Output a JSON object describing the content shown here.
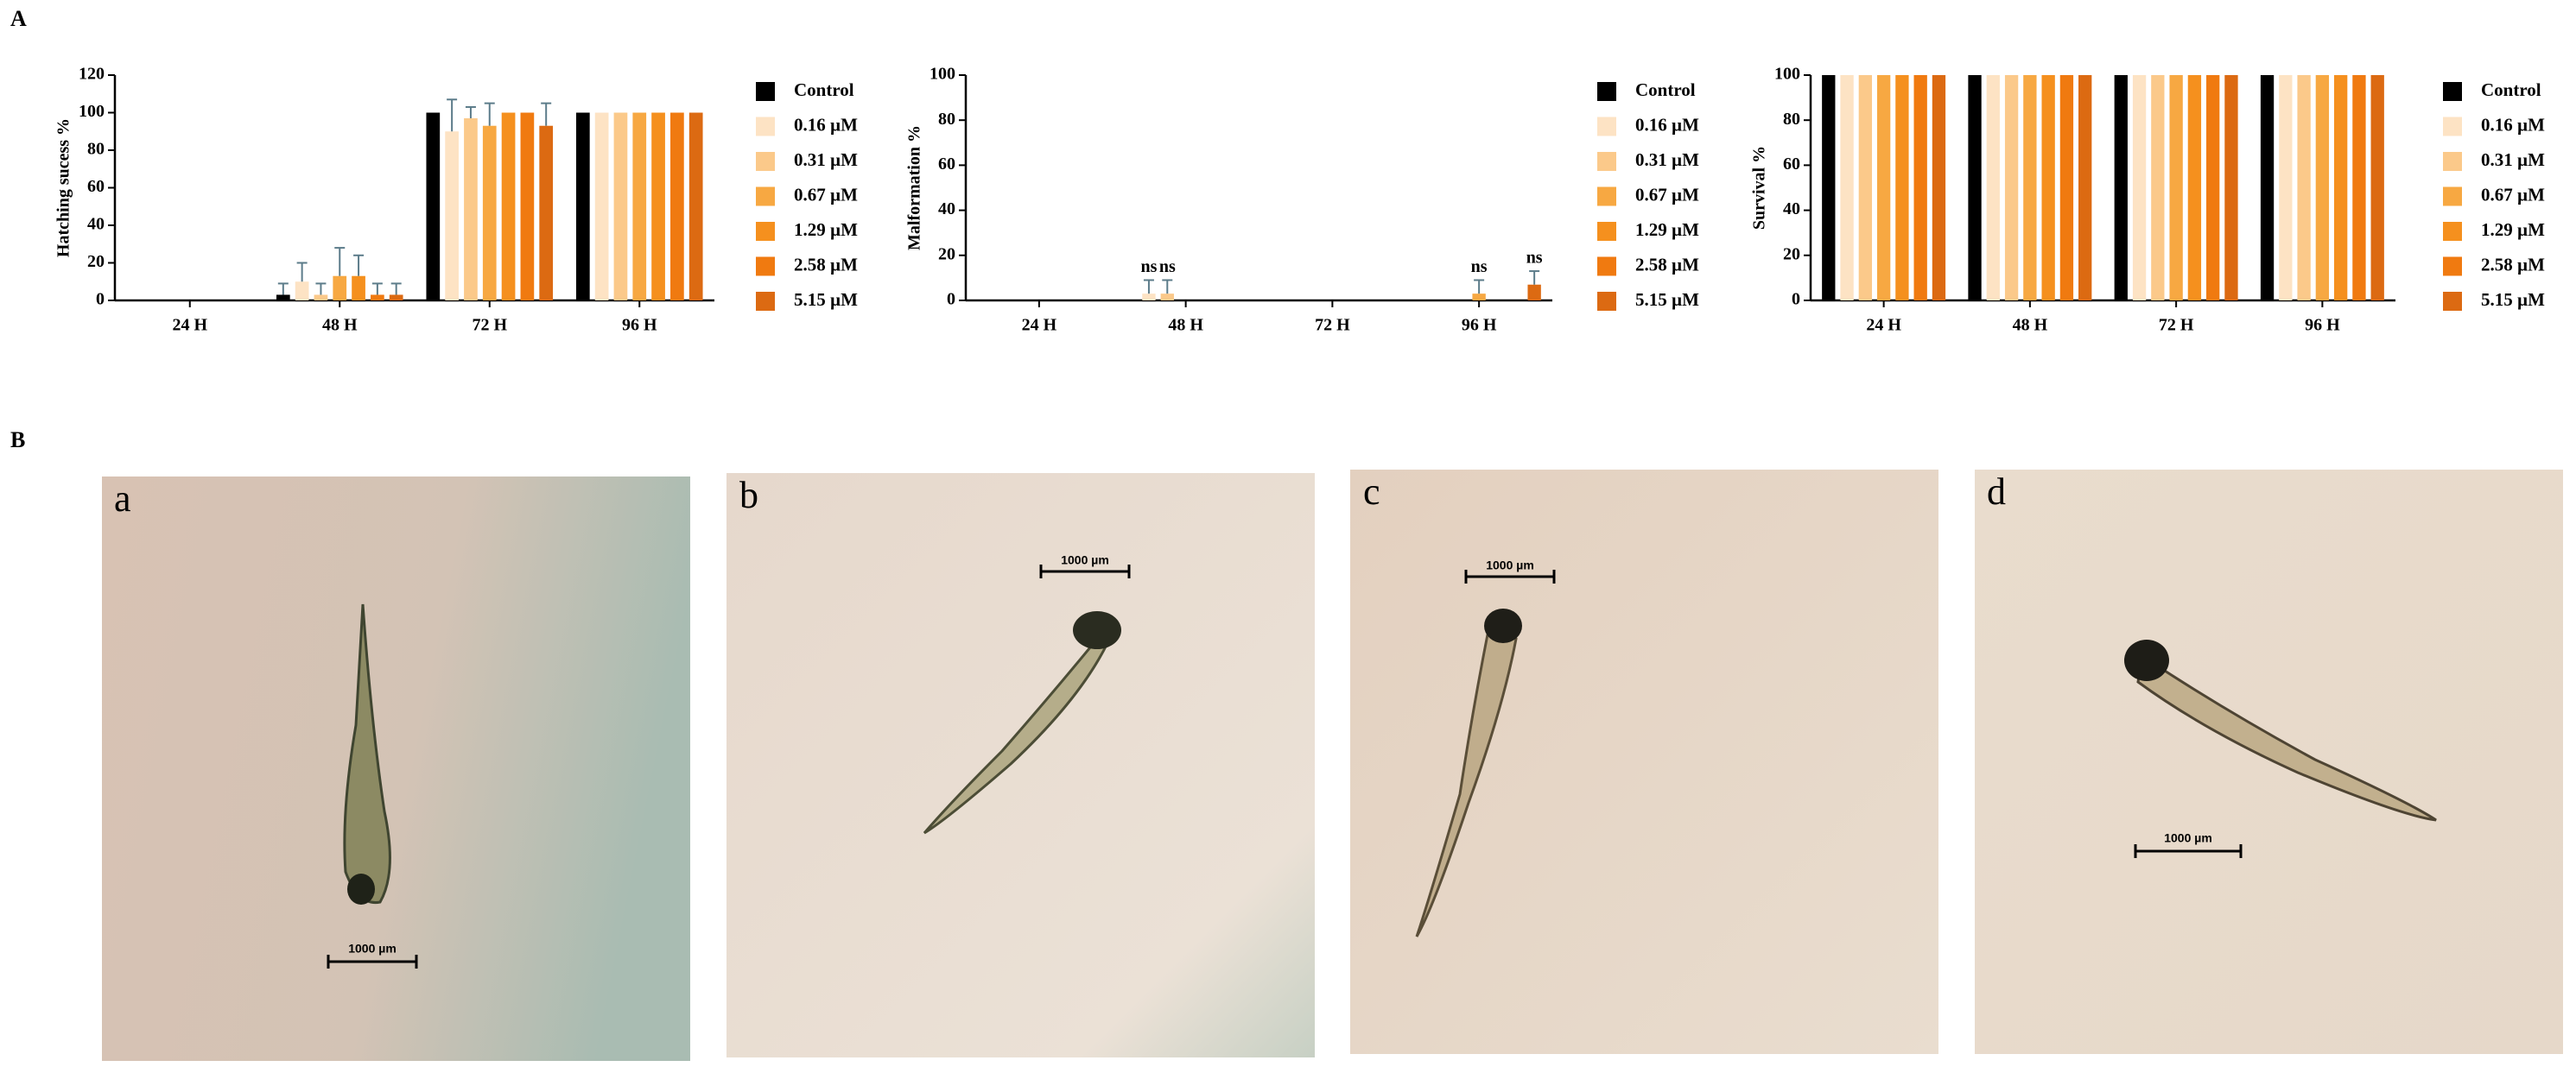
{
  "panel_labels": [
    "A",
    "B"
  ],
  "chart_data": [
    {
      "type": "bar",
      "ylabel": "Hatching sucess %",
      "categories": [
        "24 H",
        "48 H",
        "72 H",
        "96 H"
      ],
      "ylim": [
        0,
        120
      ],
      "yticks": [
        0,
        20,
        40,
        60,
        80,
        100,
        120
      ],
      "legend": "right",
      "series": [
        {
          "name": "Control",
          "color": "#000000",
          "values": [
            0,
            3,
            100,
            100
          ],
          "errors": [
            null,
            6,
            null,
            null
          ]
        },
        {
          "name": "0.16 µM",
          "color": "#fde3c4",
          "values": [
            0,
            10,
            90,
            100
          ],
          "errors": [
            null,
            10,
            17,
            null
          ]
        },
        {
          "name": "0.31 µM",
          "color": "#fbc98a",
          "values": [
            0,
            3,
            97,
            100
          ],
          "errors": [
            null,
            6,
            6,
            null
          ]
        },
        {
          "name": "0.67 µM",
          "color": "#f7a842",
          "values": [
            0,
            13,
            93,
            100
          ],
          "errors": [
            null,
            15,
            12,
            null
          ]
        },
        {
          "name": "1.29 µM",
          "color": "#f5901e",
          "values": [
            0,
            13,
            100,
            100
          ],
          "errors": [
            null,
            11,
            null,
            null
          ]
        },
        {
          "name": "2.58 µM",
          "color": "#f07a10",
          "values": [
            0,
            3,
            100,
            100
          ],
          "errors": [
            null,
            6,
            null,
            null
          ]
        },
        {
          "name": "5.15 µM",
          "color": "#dc6a12",
          "values": [
            0,
            3,
            93,
            100
          ],
          "errors": [
            null,
            6,
            12,
            null
          ]
        }
      ]
    },
    {
      "type": "bar",
      "ylabel": "Malformation %",
      "categories": [
        "24 H",
        "48 H",
        "72 H",
        "96 H"
      ],
      "ylim": [
        0,
        100
      ],
      "yticks": [
        0,
        20,
        40,
        60,
        80,
        100
      ],
      "legend": "right",
      "series": [
        {
          "name": "Control",
          "color": "#000000",
          "values": [
            0,
            0,
            0,
            0
          ]
        },
        {
          "name": "0.16 µM",
          "color": "#fde3c4",
          "values": [
            0,
            3,
            0,
            0
          ],
          "errors": [
            null,
            6,
            null,
            null
          ],
          "annotations": [
            null,
            "ns",
            null,
            null
          ]
        },
        {
          "name": "0.31 µM",
          "color": "#fbc98a",
          "values": [
            0,
            3,
            0,
            0
          ],
          "errors": [
            null,
            6,
            null,
            null
          ],
          "annotations": [
            null,
            "ns",
            null,
            null
          ]
        },
        {
          "name": "0.67 µM",
          "color": "#f7a842",
          "values": [
            0,
            0,
            0,
            3
          ],
          "errors": [
            null,
            null,
            null,
            6
          ],
          "annotations": [
            null,
            null,
            null,
            "ns"
          ]
        },
        {
          "name": "1.29 µM",
          "color": "#f5901e",
          "values": [
            0,
            0,
            0,
            0
          ]
        },
        {
          "name": "2.58 µM",
          "color": "#f07a10",
          "values": [
            0,
            0,
            0,
            0
          ]
        },
        {
          "name": "5.15 µM",
          "color": "#dc6a12",
          "values": [
            0,
            0,
            0,
            7
          ],
          "errors": [
            null,
            null,
            null,
            6
          ],
          "annotations": [
            null,
            null,
            null,
            "ns"
          ]
        }
      ]
    },
    {
      "type": "bar",
      "ylabel": "Survival %",
      "categories": [
        "24 H",
        "48 H",
        "72 H",
        "96 H"
      ],
      "ylim": [
        0,
        100
      ],
      "yticks": [
        0,
        20,
        40,
        60,
        80,
        100
      ],
      "legend": "right",
      "series": [
        {
          "name": "Control",
          "color": "#000000",
          "values": [
            100,
            100,
            100,
            100
          ]
        },
        {
          "name": "0.16 µM",
          "color": "#fde3c4",
          "values": [
            100,
            100,
            100,
            100
          ]
        },
        {
          "name": "0.31 µM",
          "color": "#fbc98a",
          "values": [
            100,
            100,
            100,
            100
          ]
        },
        {
          "name": "0.67 µM",
          "color": "#f7a842",
          "values": [
            100,
            100,
            100,
            100
          ]
        },
        {
          "name": "1.29 µM",
          "color": "#f5901e",
          "values": [
            100,
            100,
            100,
            100
          ]
        },
        {
          "name": "2.58 µM",
          "color": "#f07a10",
          "values": [
            100,
            100,
            100,
            100
          ]
        },
        {
          "name": "5.15 µM",
          "color": "#dc6a12",
          "values": [
            100,
            100,
            100,
            100
          ]
        }
      ]
    }
  ],
  "images": [
    {
      "label": "a",
      "scale_bar": "1000 µm"
    },
    {
      "label": "b",
      "scale_bar": "1000 µm"
    },
    {
      "label": "c",
      "scale_bar": "1000 µm"
    },
    {
      "label": "d",
      "scale_bar": "1000 µm"
    }
  ]
}
